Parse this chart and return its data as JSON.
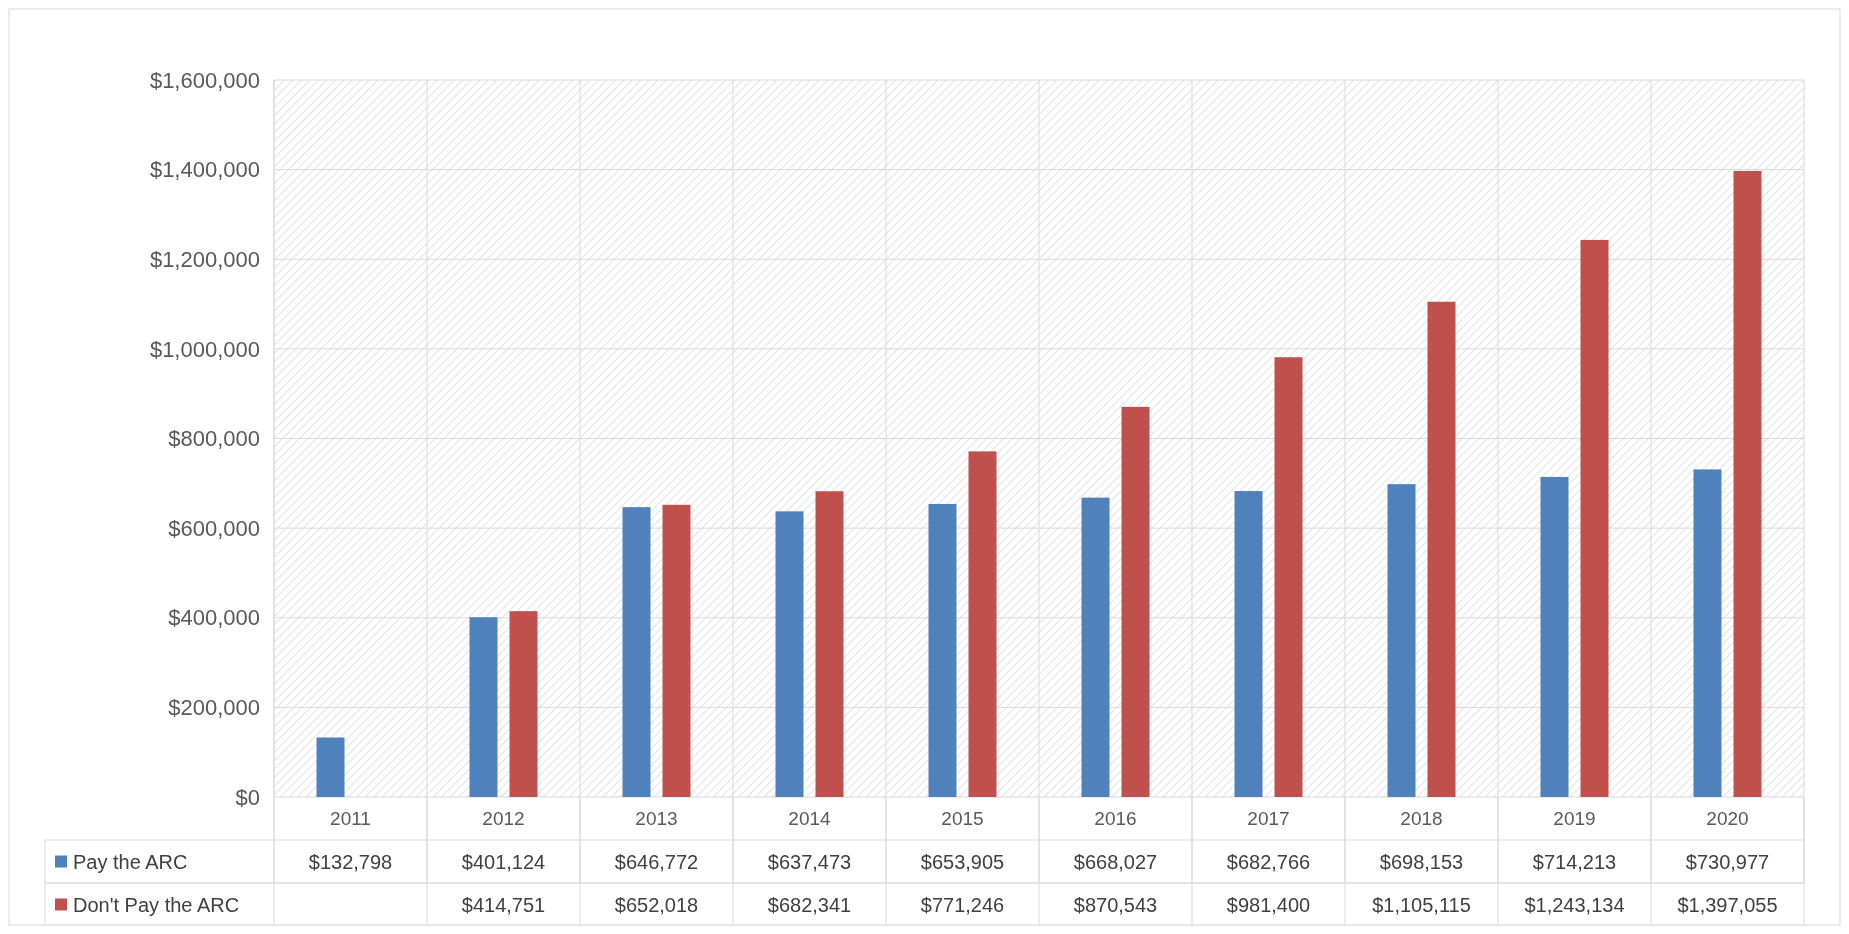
{
  "chart_data": {
    "type": "bar",
    "categories": [
      "2011",
      "2012",
      "2013",
      "2014",
      "2015",
      "2016",
      "2017",
      "2018",
      "2019",
      "2020"
    ],
    "series": [
      {
        "name": "Pay the ARC",
        "color": "#4f81bd",
        "values": [
          132798,
          401124,
          646772,
          637473,
          653905,
          668027,
          682766,
          698153,
          714213,
          730977
        ],
        "value_labels": [
          "$132,798",
          "$401,124",
          "$646,772",
          "$637,473",
          "$653,905",
          "$668,027",
          "$682,766",
          "$698,153",
          "$714,213",
          "$730,977"
        ]
      },
      {
        "name": "Don't Pay the ARC",
        "color": "#c0504d",
        "values": [
          null,
          414751,
          652018,
          682341,
          771246,
          870543,
          981400,
          1105115,
          1243134,
          1397055
        ],
        "value_labels": [
          null,
          "$414,751",
          "$652,018",
          "$682,341",
          "$771,246",
          "$870,543",
          "$981,400",
          "$1,105,115",
          "$1,243,134",
          "$1,397,055"
        ]
      }
    ],
    "ylim": [
      0,
      1600000
    ],
    "yticks": [
      {
        "value": 0,
        "label": "$0"
      },
      {
        "value": 200000,
        "label": "$200,000"
      },
      {
        "value": 400000,
        "label": "$400,000"
      },
      {
        "value": 600000,
        "label": "$600,000"
      },
      {
        "value": 800000,
        "label": "$800,000"
      },
      {
        "value": 1000000,
        "label": "$1,000,000"
      },
      {
        "value": 1200000,
        "label": "$1,200,000"
      },
      {
        "value": 1400000,
        "label": "$1,400,000"
      },
      {
        "value": 1600000,
        "label": "$1,600,000"
      }
    ],
    "grid": true,
    "legend": "bottom"
  }
}
